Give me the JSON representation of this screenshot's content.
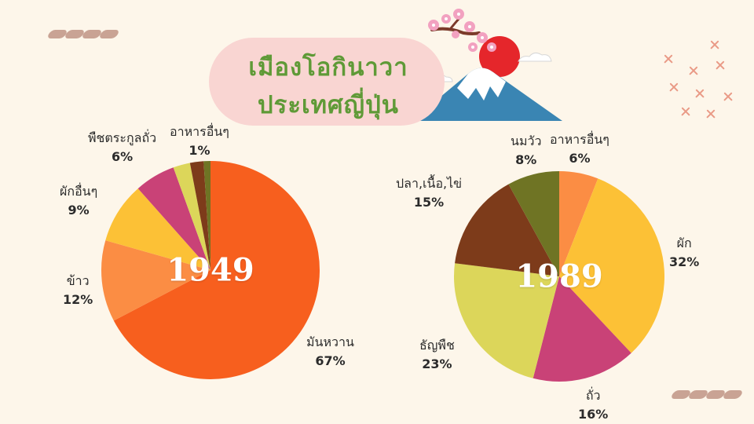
{
  "title": {
    "line1": "เมืองโอกินาวา",
    "line2": "ประเทศญี่ปุ่น"
  },
  "colors": {
    "background": "#fdf6ea",
    "title_pill": "#f9d5d2",
    "title_text": "#5f9a37"
  },
  "chart_data": [
    {
      "type": "pie",
      "title": "1949",
      "slices": [
        {
          "label": "มันหวาน",
          "percent": "67%",
          "value": 67,
          "color": "#f75f1e"
        },
        {
          "label": "ข้าว",
          "percent": "12%",
          "value": 12,
          "color": "#fb8d44"
        },
        {
          "label": "ผักอื่นๆ",
          "percent": "9%",
          "value": 9,
          "color": "#fcc136"
        },
        {
          "label": "พืชตระกูลถั่ว",
          "percent": "6%",
          "value": 6,
          "color": "#c94277"
        },
        {
          "label": "",
          "percent": "",
          "value": 2.5,
          "color": "#dcd65a"
        },
        {
          "label": "",
          "percent": "",
          "value": 2,
          "color": "#7d3b1a"
        },
        {
          "label": "อาหารอื่นๆ",
          "percent": "1%",
          "value": 1,
          "color": "#6f7424"
        }
      ]
    },
    {
      "type": "pie",
      "title": "1989",
      "slices": [
        {
          "label": "อาหารอื่นๆ",
          "percent": "6%",
          "value": 6,
          "color": "#fb8d44"
        },
        {
          "label": "ผัก",
          "percent": "32%",
          "value": 32,
          "color": "#fcc136"
        },
        {
          "label": "ถั่ว",
          "percent": "16%",
          "value": 16,
          "color": "#c94277"
        },
        {
          "label": "ธัญพืช",
          "percent": "23%",
          "value": 23,
          "color": "#dcd65a"
        },
        {
          "label": "ปลา,เนื้อ,ไข่",
          "percent": "15%",
          "value": 15,
          "color": "#7d3b1a"
        },
        {
          "label": "นมวัว",
          "percent": "8%",
          "value": 8,
          "color": "#6f7424"
        }
      ]
    }
  ]
}
